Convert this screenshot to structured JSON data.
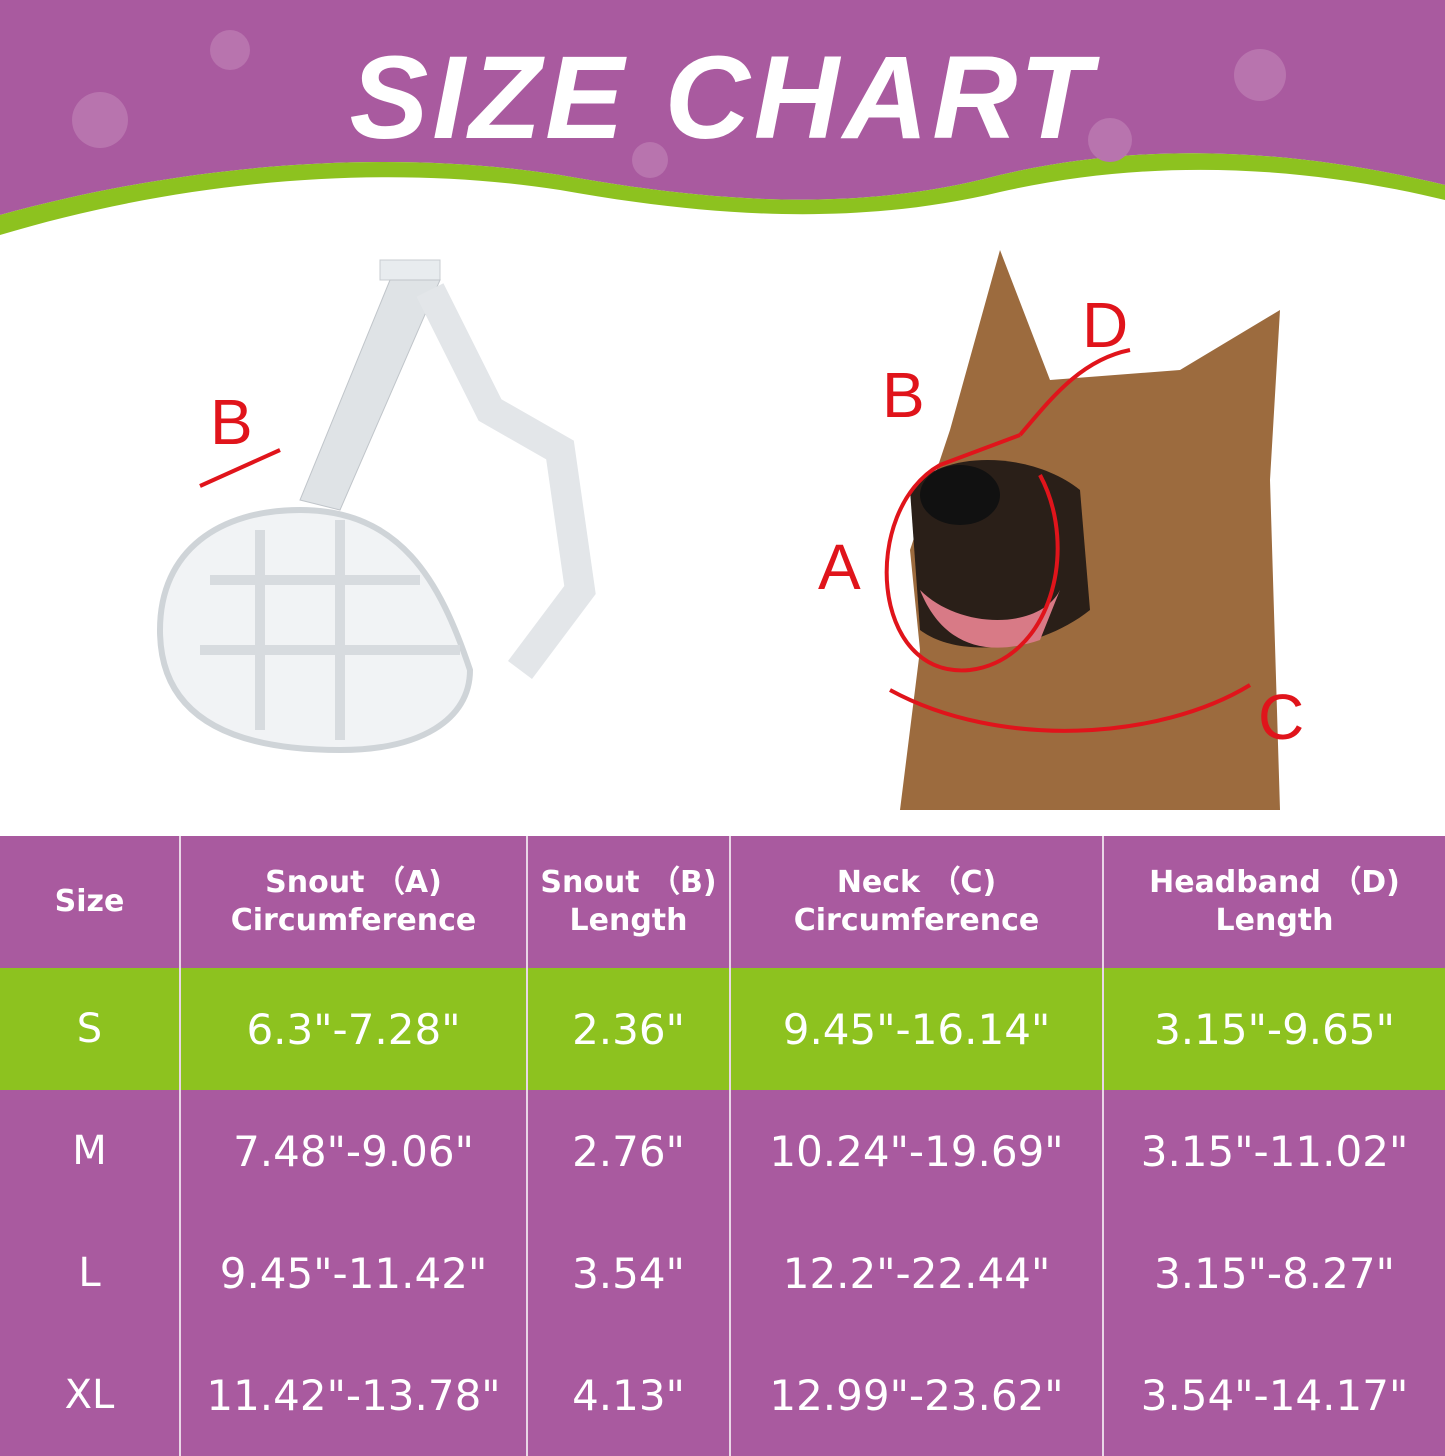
{
  "title": "SIZE CHART",
  "colors": {
    "purple": "#a95a9f",
    "green": "#8dc21f",
    "arrow_red": "#e0141b"
  },
  "muzzle_labels": {
    "b": "B"
  },
  "dog_labels": {
    "a": "A",
    "b": "B",
    "c": "C",
    "d": "D"
  },
  "table": {
    "headers": [
      {
        "line1": "Size",
        "line2": ""
      },
      {
        "line1": "Snout （A)",
        "line2": "Circumference"
      },
      {
        "line1": "Snout （B)",
        "line2": "Length"
      },
      {
        "line1": "Neck （C)",
        "line2": "Circumference"
      },
      {
        "line1": "Headband （D)",
        "line2": "Length"
      }
    ],
    "rows": [
      {
        "size": "S",
        "snout_circ": "6.3\"-7.28\"",
        "snout_len": "2.36\"",
        "neck_circ": "9.45\"-16.14\"",
        "headband": "3.15\"-9.65\"",
        "highlight": true
      },
      {
        "size": "M",
        "snout_circ": "7.48\"-9.06\"",
        "snout_len": "2.76\"",
        "neck_circ": "10.24\"-19.69\"",
        "headband": "3.15\"-11.02\""
      },
      {
        "size": "L",
        "snout_circ": "9.45\"-11.42\"",
        "snout_len": "3.54\"",
        "neck_circ": "12.2\"-22.44\"",
        "headband": "3.15\"-8.27\""
      },
      {
        "size": "XL",
        "snout_circ": "11.42\"-13.78\"",
        "snout_len": "4.13\"",
        "neck_circ": "12.99\"-23.62\"",
        "headband": "3.54\"-14.17\""
      }
    ]
  }
}
